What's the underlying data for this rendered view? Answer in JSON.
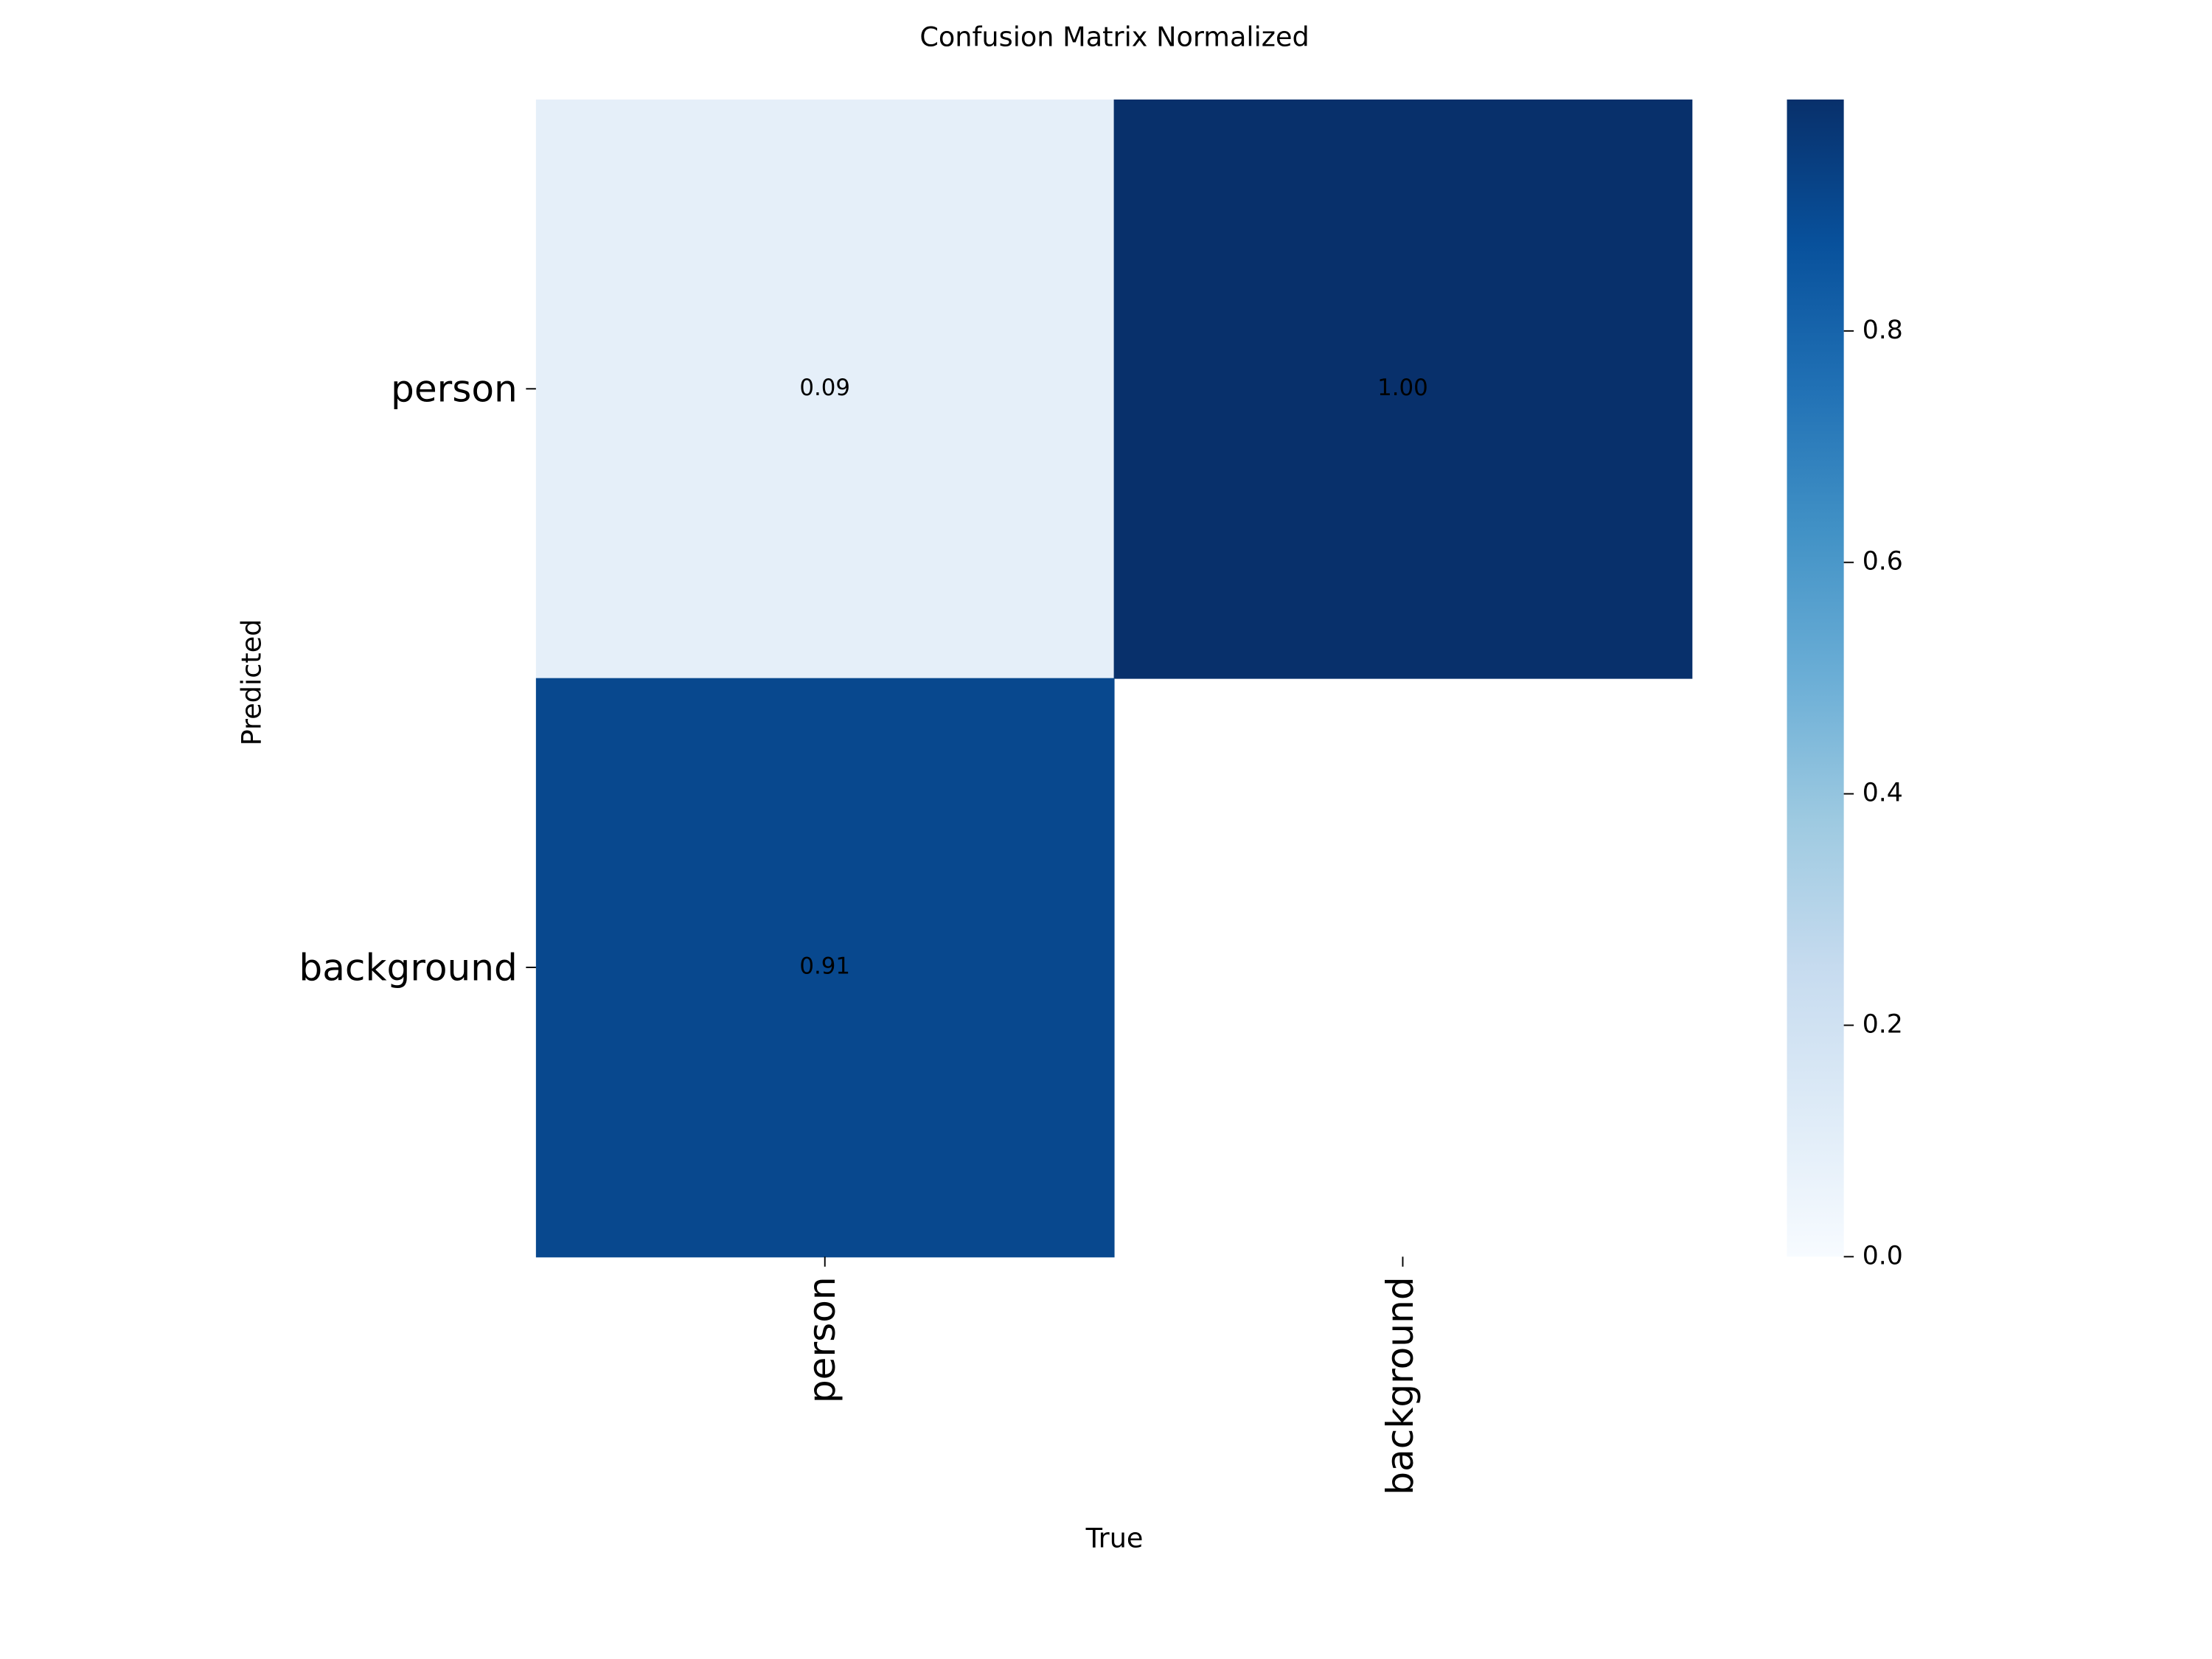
{
  "chart_data": {
    "type": "heatmap",
    "title": "Confusion Matrix Normalized",
    "x_label": "True",
    "y_label": "Predicted",
    "x_categories": [
      "person",
      "background"
    ],
    "y_categories": [
      "person",
      "background"
    ],
    "values": [
      [
        0.09,
        1.0
      ],
      [
        0.91,
        null
      ]
    ],
    "value_labels": [
      [
        "0.09",
        "1.00"
      ],
      [
        "0.91",
        null
      ]
    ],
    "colormap": "Blues",
    "clim": [
      0,
      1
    ],
    "colorbar_ticks": [
      {
        "value": 0,
        "label": "0.0"
      },
      0.2,
      0.4,
      0.6,
      0.8
    ]
  }
}
